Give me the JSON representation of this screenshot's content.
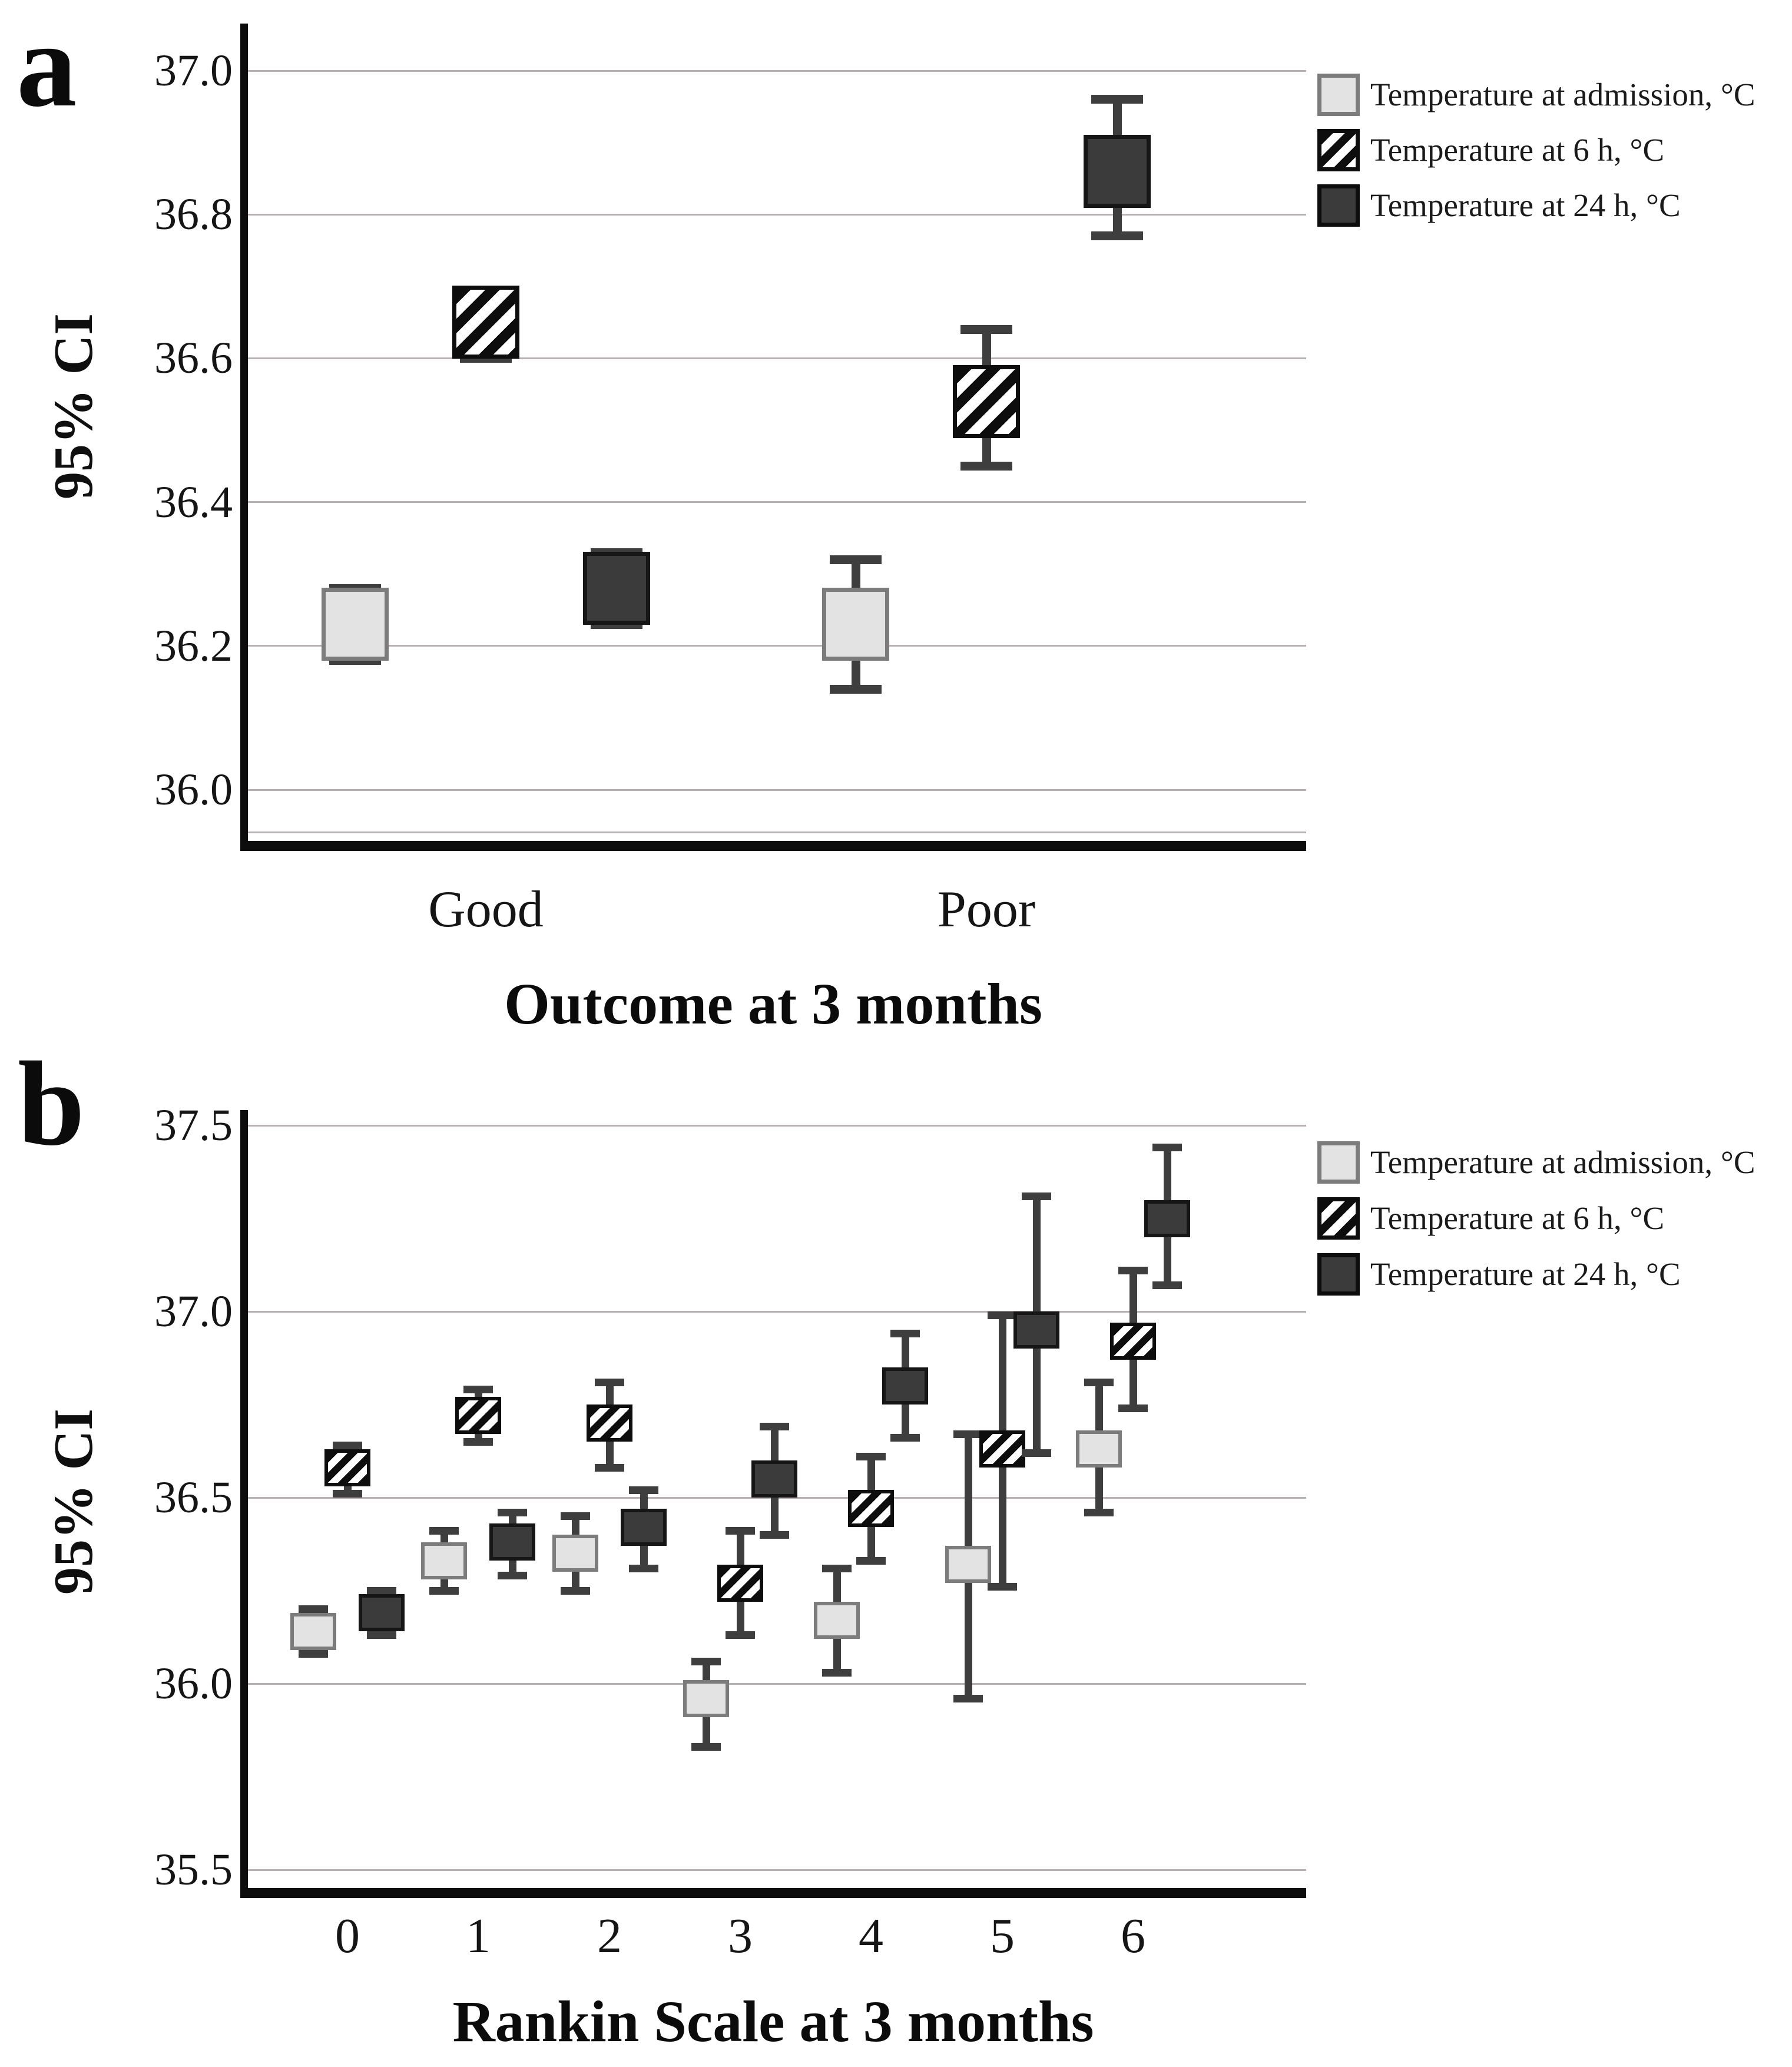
{
  "colors": {
    "background": "#ffffff",
    "grid": "#b8b0b0",
    "axis": "#0d0d0d",
    "whisker": "#3e3e3e",
    "text": "#141414"
  },
  "series_styles": {
    "admission": {
      "fill": "#e3e3e3",
      "border": "#7c7c7c"
    },
    "t6h": {
      "fill": "#ffffff",
      "border": "#0d0d0d",
      "stripe": "#0d0d0d"
    },
    "t24h": {
      "fill": "#3b3b3b",
      "border": "#161616"
    }
  },
  "legend": {
    "items": [
      {
        "key": "admission",
        "label": "Temperature at admission, °C"
      },
      {
        "key": "t6h",
        "label": "Temperature at 6 h, °C"
      },
      {
        "key": "t24h",
        "label": "Temperature at 24 h, °C"
      }
    ]
  },
  "chart_data": [
    {
      "id": "a",
      "type": "errorbar",
      "panel_letter": "a",
      "ylabel": "95% CI",
      "xlabel": "Outcome at 3 months",
      "ylim": [
        35.92,
        37.06
      ],
      "grid": true,
      "legend_position": "top-right-outside",
      "yticks": [
        {
          "label": "37.0",
          "value": 37.0
        },
        {
          "label": "36.8",
          "value": 36.8
        },
        {
          "label": "36.6",
          "value": 36.6
        },
        {
          "label": "36.4",
          "value": 36.4
        },
        {
          "label": "36.2",
          "value": 36.2
        },
        {
          "label": "36.0",
          "value": 36.0
        }
      ],
      "categories": [
        "Good",
        "Poor"
      ],
      "series": [
        {
          "key": "admission",
          "name": "Temperature at admission, °C",
          "means": [
            36.23,
            36.23
          ],
          "ci_low": [
            36.18,
            36.14
          ],
          "ci_high": [
            36.28,
            36.32
          ]
        },
        {
          "key": "t6h",
          "name": "Temperature at 6 h, °C",
          "means": [
            36.65,
            36.54
          ],
          "ci_low": [
            36.6,
            36.45
          ],
          "ci_high": [
            36.69,
            36.64
          ]
        },
        {
          "key": "t24h",
          "name": "Temperature at 24 h, °C",
          "means": [
            36.28,
            36.86
          ],
          "ci_low": [
            36.23,
            36.77
          ],
          "ci_high": [
            36.33,
            36.96
          ]
        }
      ]
    },
    {
      "id": "b",
      "type": "errorbar",
      "panel_letter": "b",
      "ylabel": "95% CI",
      "xlabel": "Rankin Scale at 3 months",
      "ylim": [
        35.44,
        37.55
      ],
      "grid": true,
      "legend_position": "top-right-outside",
      "yticks": [
        {
          "label": "37.5",
          "value": 37.5
        },
        {
          "label": "37.0",
          "value": 37.0
        },
        {
          "label": "36.5",
          "value": 36.5
        },
        {
          "label": "36.0",
          "value": 36.0
        },
        {
          "label": "35.5",
          "value": 35.5
        }
      ],
      "categories": [
        "0",
        "1",
        "2",
        "3",
        "4",
        "5",
        "6"
      ],
      "series": [
        {
          "key": "admission",
          "name": "Temperature at admission, °C",
          "means": [
            36.14,
            36.33,
            36.35,
            35.96,
            36.17,
            36.32,
            36.63
          ],
          "ci_low": [
            36.08,
            36.25,
            36.25,
            35.83,
            36.03,
            35.96,
            36.46
          ],
          "ci_high": [
            36.2,
            36.41,
            36.45,
            36.06,
            36.31,
            36.67,
            36.81
          ]
        },
        {
          "key": "t6h",
          "name": "Temperature at 6 h, °C",
          "means": [
            36.58,
            36.72,
            36.7,
            36.27,
            36.47,
            36.63,
            36.92
          ],
          "ci_low": [
            36.51,
            36.65,
            36.58,
            36.13,
            36.33,
            36.26,
            36.74
          ],
          "ci_high": [
            36.64,
            36.79,
            36.81,
            36.41,
            36.61,
            36.99,
            37.11
          ]
        },
        {
          "key": "t24h",
          "name": "Temperature at 24 h, °C",
          "means": [
            36.19,
            36.38,
            36.42,
            36.55,
            36.8,
            36.95,
            37.25
          ],
          "ci_low": [
            36.13,
            36.29,
            36.31,
            36.4,
            36.66,
            36.62,
            37.07
          ],
          "ci_high": [
            36.25,
            36.46,
            36.52,
            36.69,
            36.94,
            37.31,
            37.44
          ]
        }
      ]
    }
  ]
}
